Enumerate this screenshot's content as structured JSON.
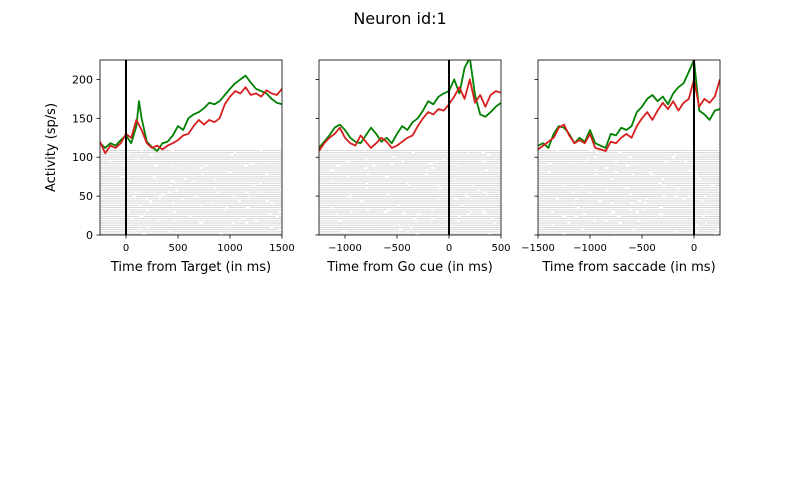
{
  "figure": {
    "title": "Neuron id:1"
  },
  "chart_data": [
    {
      "type": "line",
      "title": "",
      "xlabel": "Time from Target (in ms)",
      "ylabel": "Activity (sp/s)",
      "xlim": [
        -250,
        1500
      ],
      "ylim": [
        0,
        225
      ],
      "xticks": [
        0,
        500,
        1000,
        1500
      ],
      "yticks": [
        0,
        50,
        100,
        150,
        200
      ],
      "event_line_x": 0,
      "raster_max_y": 110,
      "series": [
        {
          "color": "#008000",
          "x": [
            -250,
            -200,
            -150,
            -100,
            -50,
            0,
            50,
            100,
            125,
            150,
            200,
            250,
            300,
            350,
            400,
            450,
            500,
            550,
            600,
            650,
            700,
            750,
            800,
            850,
            900,
            950,
            1000,
            1050,
            1100,
            1150,
            1200,
            1250,
            1300,
            1350,
            1400,
            1450,
            1500
          ],
          "y": [
            118,
            112,
            118,
            115,
            122,
            128,
            118,
            140,
            172,
            150,
            120,
            113,
            108,
            118,
            120,
            128,
            140,
            135,
            150,
            155,
            158,
            163,
            170,
            168,
            172,
            180,
            188,
            195,
            200,
            205,
            196,
            188,
            185,
            182,
            175,
            170,
            168
          ]
        },
        {
          "color": "#d62020",
          "x": [
            -250,
            -200,
            -150,
            -100,
            -50,
            0,
            50,
            100,
            150,
            200,
            250,
            300,
            350,
            400,
            450,
            500,
            550,
            600,
            650,
            700,
            750,
            800,
            850,
            900,
            950,
            1000,
            1050,
            1100,
            1150,
            1200,
            1250,
            1300,
            1350,
            1400,
            1450,
            1500
          ],
          "y": [
            120,
            105,
            115,
            112,
            118,
            130,
            125,
            148,
            135,
            118,
            112,
            115,
            110,
            115,
            118,
            122,
            128,
            130,
            140,
            148,
            142,
            148,
            145,
            150,
            168,
            178,
            185,
            182,
            190,
            180,
            182,
            178,
            186,
            182,
            180,
            188
          ]
        }
      ]
    },
    {
      "type": "line",
      "title": "",
      "xlabel": "Time from Go cue (in ms)",
      "ylabel": "",
      "xlim": [
        -1250,
        500
      ],
      "ylim": [
        0,
        225
      ],
      "xticks": [
        -1000,
        -500,
        0,
        500
      ],
      "yticks": [
        0,
        50,
        100,
        150,
        200
      ],
      "event_line_x": 0,
      "raster_max_y": 110,
      "series": [
        {
          "color": "#008000",
          "x": [
            -1250,
            -1200,
            -1150,
            -1100,
            -1050,
            -1000,
            -950,
            -900,
            -850,
            -800,
            -750,
            -700,
            -650,
            -600,
            -550,
            -500,
            -450,
            -400,
            -350,
            -300,
            -250,
            -200,
            -150,
            -100,
            -50,
            0,
            50,
            100,
            150,
            200,
            250,
            300,
            350,
            400,
            450,
            500
          ],
          "y": [
            112,
            120,
            128,
            138,
            142,
            135,
            125,
            120,
            118,
            128,
            138,
            130,
            120,
            125,
            118,
            130,
            140,
            135,
            145,
            150,
            160,
            172,
            168,
            178,
            182,
            185,
            200,
            182,
            215,
            228,
            180,
            155,
            152,
            158,
            165,
            170
          ]
        },
        {
          "color": "#d62020",
          "x": [
            -1250,
            -1200,
            -1150,
            -1100,
            -1050,
            -1000,
            -950,
            -900,
            -850,
            -800,
            -750,
            -700,
            -650,
            -600,
            -550,
            -500,
            -450,
            -400,
            -350,
            -300,
            -250,
            -200,
            -150,
            -100,
            -50,
            0,
            50,
            100,
            150,
            200,
            250,
            300,
            350,
            400,
            450,
            500
          ],
          "y": [
            108,
            118,
            125,
            130,
            138,
            125,
            118,
            115,
            128,
            120,
            112,
            118,
            125,
            120,
            112,
            115,
            120,
            125,
            128,
            140,
            150,
            158,
            155,
            162,
            160,
            168,
            178,
            190,
            175,
            200,
            170,
            180,
            165,
            180,
            185,
            183
          ]
        }
      ]
    },
    {
      "type": "line",
      "title": "",
      "xlabel": "Time from saccade (in ms)",
      "ylabel": "",
      "xlim": [
        -1500,
        250
      ],
      "ylim": [
        0,
        225
      ],
      "xticks": [
        -1500,
        -1000,
        -500,
        0
      ],
      "yticks": [
        0,
        50,
        100,
        150,
        200
      ],
      "event_line_x": 0,
      "raster_max_y": 110,
      "series": [
        {
          "color": "#008000",
          "x": [
            -1500,
            -1450,
            -1400,
            -1350,
            -1300,
            -1250,
            -1200,
            -1150,
            -1100,
            -1050,
            -1000,
            -950,
            -900,
            -850,
            -800,
            -750,
            -700,
            -650,
            -600,
            -550,
            -500,
            -450,
            -400,
            -350,
            -300,
            -250,
            -200,
            -150,
            -100,
            -50,
            0,
            50,
            100,
            150,
            200,
            250
          ],
          "y": [
            115,
            118,
            112,
            130,
            140,
            138,
            130,
            118,
            125,
            120,
            135,
            118,
            115,
            112,
            130,
            128,
            138,
            135,
            140,
            158,
            165,
            175,
            180,
            172,
            178,
            168,
            182,
            190,
            195,
            210,
            225,
            160,
            155,
            148,
            160,
            162
          ]
        },
        {
          "color": "#d62020",
          "x": [
            -1500,
            -1450,
            -1400,
            -1350,
            -1300,
            -1250,
            -1200,
            -1150,
            -1100,
            -1050,
            -1000,
            -950,
            -900,
            -850,
            -800,
            -750,
            -700,
            -650,
            -600,
            -550,
            -500,
            -450,
            -400,
            -350,
            -300,
            -250,
            -200,
            -150,
            -100,
            -50,
            0,
            50,
            100,
            150,
            200,
            250
          ],
          "y": [
            110,
            115,
            120,
            125,
            138,
            142,
            128,
            118,
            122,
            118,
            130,
            112,
            110,
            108,
            120,
            118,
            125,
            130,
            125,
            140,
            150,
            158,
            148,
            160,
            170,
            162,
            172,
            160,
            170,
            175,
            200,
            165,
            175,
            170,
            178,
            200
          ]
        }
      ]
    }
  ]
}
